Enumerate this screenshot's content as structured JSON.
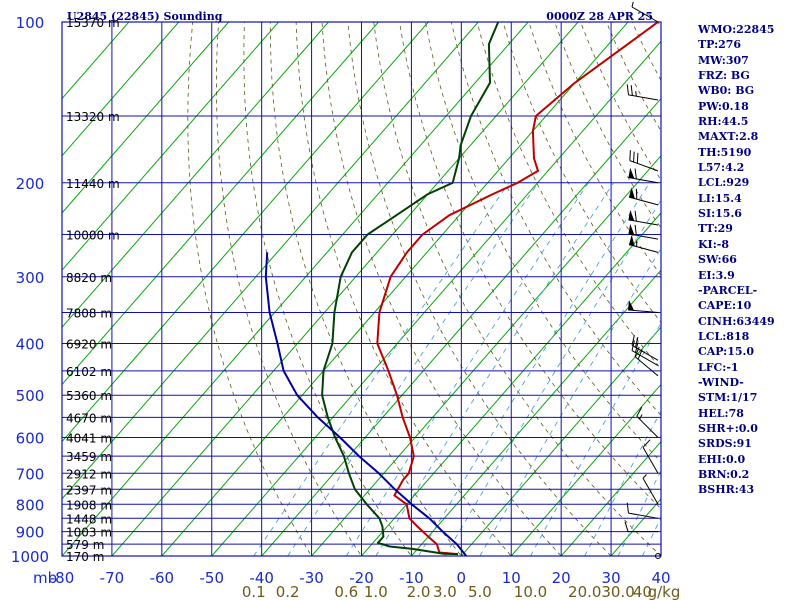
{
  "header": {
    "station": "U2845 (22845) Sounding",
    "time": "0000Z 28 APR 25"
  },
  "indices": [
    "WMO:22845",
    "TP:276",
    "MW:307",
    "FRZ: BG",
    "WB0: BG",
    "PW:0.18",
    "RH:44.5",
    "MAXT:2.8",
    "TH:5190",
    "L57:4.2",
    "LCL:929",
    "LI:15.4",
    "SI:15.6",
    "TT:29",
    "KI:-8",
    "SW:66",
    "EI:3.9",
    "-PARCEL-",
    "CAPE:10",
    "CINH:63449",
    "LCL:818",
    "CAP:15.0",
    "LFC:-1",
    "-WIND-",
    "STM:1/17",
    "HEL:78",
    "SHR+:0.0",
    "SRDS:91",
    "EHI:0.0",
    "BRN:0.2",
    "BSHR:43"
  ],
  "chart_data": {
    "type": "line",
    "title": "U2845 (22845) Sounding",
    "xlabel": "",
    "ylabel": "mb",
    "skew": "skew-T log-p",
    "x_unit": "degC",
    "xlim": [
      -80,
      40
    ],
    "y_scale": "log",
    "ylim": [
      1000,
      100
    ],
    "pressure_ticks": [
      100,
      200,
      300,
      400,
      500,
      600,
      700,
      800,
      900,
      1000
    ],
    "temperature_ticks": [
      "-80",
      "-70",
      "-60",
      "-50",
      "-40",
      "-30",
      "-20",
      "-10",
      "0",
      "10",
      "20",
      "30",
      "40"
    ],
    "mixing_ratio_ticks": [
      "0.1",
      "0.2",
      "0.6",
      "1.0",
      "2.0",
      "3.0",
      "5.0",
      "10.0",
      "20.0",
      "30.0",
      "40"
    ],
    "mixing_ratio_unit": "g/kg",
    "heights": [
      {
        "label": "15370 m",
        "p": 100
      },
      {
        "label": "13320 m",
        "p": 150
      },
      {
        "label": "11440 m",
        "p": 200
      },
      {
        "label": "10000 m",
        "p": 250
      },
      {
        "label": "8820 m",
        "p": 300
      },
      {
        "label": "7808 m",
        "p": 350
      },
      {
        "label": "6920 m",
        "p": 400
      },
      {
        "label": "6102 m",
        "p": 450
      },
      {
        "label": "5360 m",
        "p": 500
      },
      {
        "label": "4670 m",
        "p": 550
      },
      {
        "label": "4041 m",
        "p": 600
      },
      {
        "label": "3459 m",
        "p": 650
      },
      {
        "label": "2912 m",
        "p": 700
      },
      {
        "label": "2397 m",
        "p": 750
      },
      {
        "label": "1908 m",
        "p": 800
      },
      {
        "label": "1448 m",
        "p": 850
      },
      {
        "label": "1003 m",
        "p": 900
      },
      {
        "label": "579 m",
        "p": 950
      },
      {
        "label": "170 m",
        "p": 1000
      }
    ],
    "series": [
      {
        "color": "#c00000",
        "points": [
          [
            992,
            -1
          ],
          [
            985,
            -5
          ],
          [
            950,
            -7
          ],
          [
            920,
            -10
          ],
          [
            880,
            -14
          ],
          [
            850,
            -17
          ],
          [
            800,
            -20
          ],
          [
            770,
            -24
          ],
          [
            720,
            -25
          ],
          [
            700,
            -25
          ],
          [
            650,
            -27
          ],
          [
            600,
            -31
          ],
          [
            550,
            -36
          ],
          [
            500,
            -41
          ],
          [
            450,
            -47
          ],
          [
            400,
            -54
          ],
          [
            350,
            -59
          ],
          [
            300,
            -63
          ],
          [
            270,
            -64
          ],
          [
            250,
            -64
          ],
          [
            230,
            -62
          ],
          [
            210,
            -57
          ],
          [
            200,
            -54
          ],
          [
            190,
            -52
          ],
          [
            180,
            -55
          ],
          [
            160,
            -60
          ],
          [
            150,
            -62
          ],
          [
            130,
            -60
          ],
          [
            100,
            -54
          ]
        ]
      },
      {
        "color": "#004000",
        "points": [
          [
            992,
            -1
          ],
          [
            990,
            -4
          ],
          [
            970,
            -11
          ],
          [
            960,
            -16
          ],
          [
            945,
            -19
          ],
          [
            920,
            -19
          ],
          [
            880,
            -21
          ],
          [
            850,
            -23
          ],
          [
            800,
            -28
          ],
          [
            750,
            -33
          ],
          [
            700,
            -37
          ],
          [
            650,
            -41
          ],
          [
            600,
            -46
          ],
          [
            550,
            -51
          ],
          [
            500,
            -56
          ],
          [
            450,
            -60
          ],
          [
            400,
            -63
          ],
          [
            350,
            -68
          ],
          [
            300,
            -73
          ],
          [
            270,
            -75
          ],
          [
            250,
            -75
          ],
          [
            210,
            -70
          ],
          [
            200,
            -67
          ],
          [
            180,
            -70
          ],
          [
            170,
            -72
          ],
          [
            150,
            -75
          ],
          [
            130,
            -77
          ],
          [
            110,
            -84
          ],
          [
            100,
            -86
          ]
        ]
      },
      {
        "color": "#0000a0",
        "points": [
          [
            1000,
            1
          ],
          [
            950,
            -3
          ],
          [
            900,
            -8
          ],
          [
            850,
            -13
          ],
          [
            800,
            -19
          ],
          [
            750,
            -25
          ],
          [
            700,
            -31
          ],
          [
            650,
            -38
          ],
          [
            600,
            -45
          ],
          [
            550,
            -53
          ],
          [
            500,
            -61
          ],
          [
            450,
            -68
          ],
          [
            400,
            -74
          ],
          [
            350,
            -81
          ],
          [
            300,
            -88
          ],
          [
            270,
            -92
          ]
        ]
      }
    ],
    "wind_barbs": [
      {
        "p": 100,
        "dir": 300,
        "kt": 5
      },
      {
        "p": 140,
        "dir": 280,
        "kt": 25
      },
      {
        "p": 190,
        "dir": 290,
        "kt": 30
      },
      {
        "p": 200,
        "dir": 280,
        "kt": 60
      },
      {
        "p": 220,
        "dir": 285,
        "kt": 60
      },
      {
        "p": 240,
        "dir": 280,
        "kt": 60
      },
      {
        "p": 255,
        "dir": 280,
        "kt": 60
      },
      {
        "p": 270,
        "dir": 285,
        "kt": 55
      },
      {
        "p": 350,
        "dir": 275,
        "kt": 50
      },
      {
        "p": 430,
        "dir": 300,
        "kt": 20
      },
      {
        "p": 440,
        "dir": 300,
        "kt": 20
      },
      {
        "p": 460,
        "dir": 310,
        "kt": 20
      },
      {
        "p": 600,
        "dir": 315,
        "kt": 15
      },
      {
        "p": 700,
        "dir": 330,
        "kt": 10
      },
      {
        "p": 800,
        "dir": 330,
        "kt": 5
      },
      {
        "p": 850,
        "dir": 280,
        "kt": 10
      },
      {
        "p": 900,
        "dir": 270,
        "kt": 10
      },
      {
        "p": 1000,
        "dir": 0,
        "kt": 0
      }
    ]
  }
}
